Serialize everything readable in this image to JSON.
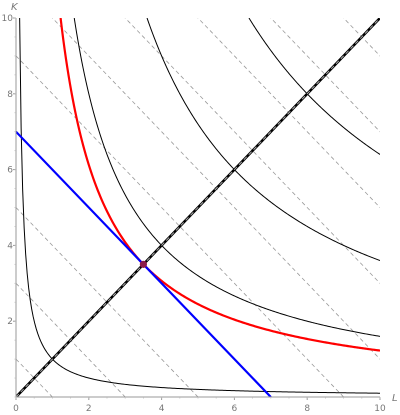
{
  "chart_data": {
    "type": "line",
    "title": "",
    "xlabel": "L",
    "ylabel": "K",
    "xlim": [
      0,
      10
    ],
    "ylim": [
      0,
      10
    ],
    "xticks": [
      "0",
      "2",
      "4",
      "6",
      "8",
      "10"
    ],
    "yticks": [
      "2",
      "4",
      "6",
      "8",
      "10"
    ],
    "grid": false,
    "legend": "none",
    "series": [
      {
        "kind": "isoquant",
        "product_LK": 1,
        "color": "#000000"
      },
      {
        "kind": "isoquant",
        "product_LK": 12.25,
        "color": "#ff0000",
        "emphasis": true
      },
      {
        "kind": "isoquant",
        "product_LK": 16,
        "color": "#000000"
      },
      {
        "kind": "isoquant",
        "product_LK": 36,
        "color": "#000000"
      },
      {
        "kind": "isoquant",
        "product_LK": 64,
        "color": "#000000"
      },
      {
        "kind": "isocost",
        "x": [
          0,
          7
        ],
        "y": [
          7,
          0
        ],
        "color": "#0000ff"
      },
      {
        "kind": "expansion-path",
        "x": [
          0,
          10
        ],
        "y": [
          0,
          10
        ],
        "color": "#000000",
        "overlay_color": "#aaaaaa"
      }
    ],
    "parallel_isocost_intercepts": [
      1,
      3,
      5,
      9,
      11,
      13,
      15,
      17,
      19
    ],
    "parallel_isocost_color": "#999999",
    "optimum": {
      "L": 3.5,
      "K": 3.5,
      "color": "#8b1a4a"
    }
  }
}
